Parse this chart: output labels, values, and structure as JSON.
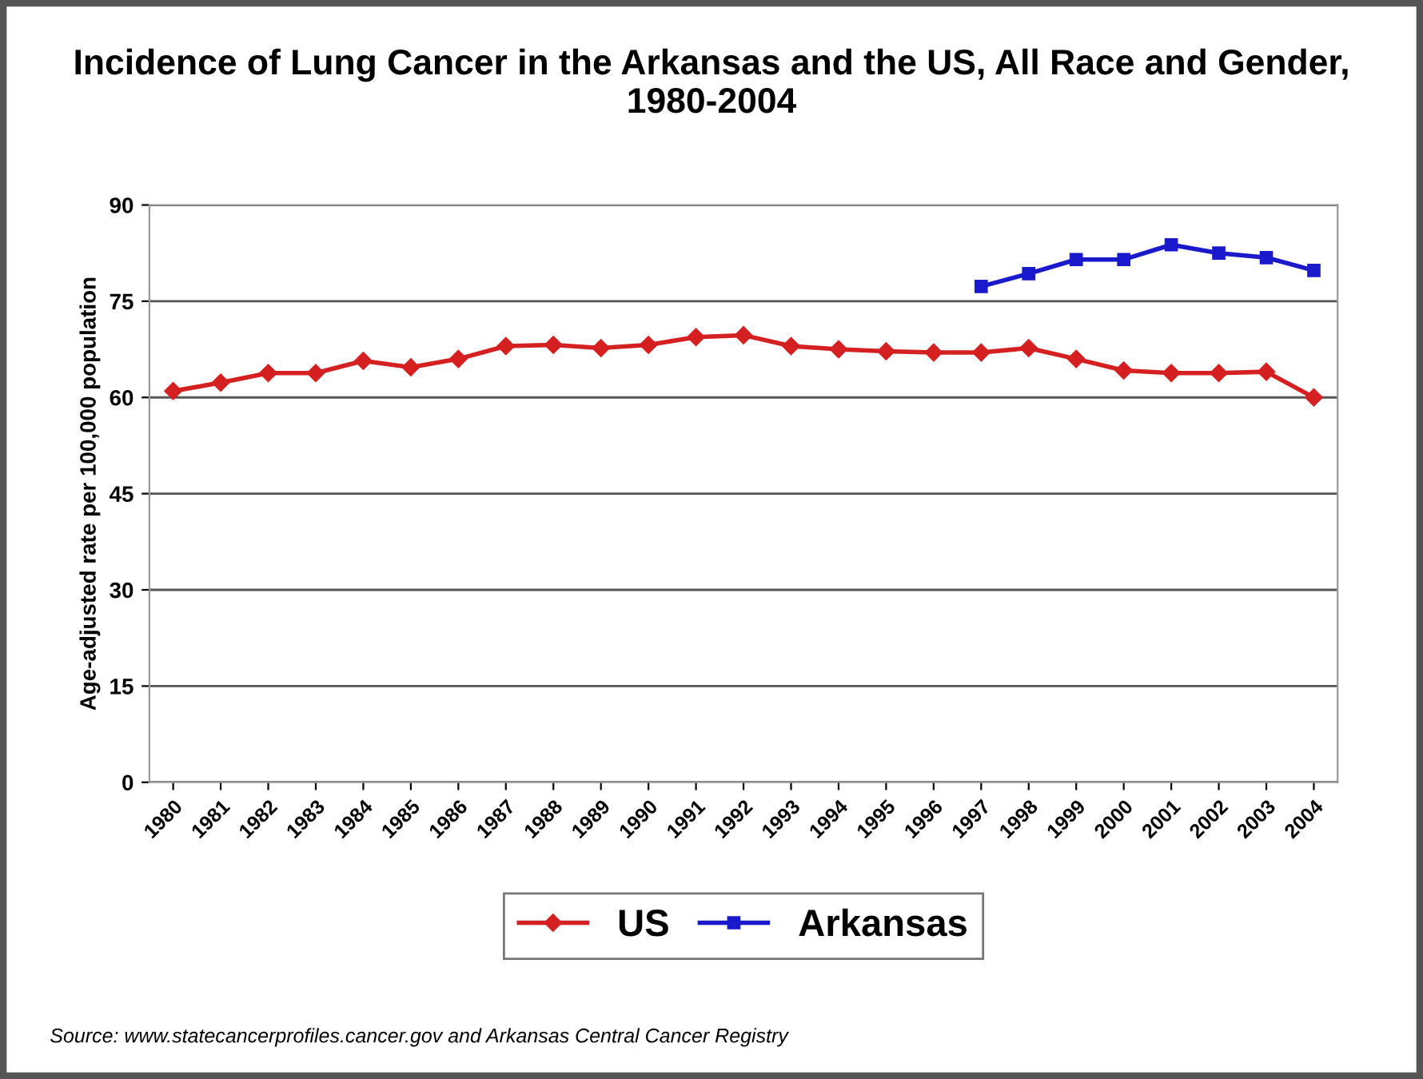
{
  "chart_data": {
    "type": "line",
    "title": "Incidence of Lung Cancer in the Arkansas and the US, All Race and Gender, 1980-2004",
    "ylabel": "Age-adjusted rate per 100,000 population",
    "categories": [
      "1980",
      "1981",
      "1982",
      "1983",
      "1984",
      "1985",
      "1986",
      "1987",
      "1988",
      "1989",
      "1990",
      "1991",
      "1992",
      "1993",
      "1994",
      "1995",
      "1996",
      "1997",
      "1998",
      "1999",
      "2000",
      "2001",
      "2002",
      "2003",
      "2004"
    ],
    "series": [
      {
        "name": "US",
        "color": "#d42020",
        "marker": "diamond",
        "values": [
          61.0,
          62.3,
          63.8,
          63.8,
          65.7,
          64.7,
          66.0,
          68.0,
          68.2,
          67.7,
          68.2,
          69.4,
          69.7,
          68.0,
          67.5,
          67.2,
          67.0,
          67.0,
          67.7,
          66.0,
          64.2,
          63.8,
          63.8,
          64.0,
          60.0
        ]
      },
      {
        "name": "Arkansas",
        "color": "#1a1acc",
        "marker": "square",
        "values": [
          null,
          null,
          null,
          null,
          null,
          null,
          null,
          null,
          null,
          null,
          null,
          null,
          null,
          null,
          null,
          null,
          null,
          77.3,
          79.3,
          81.5,
          81.5,
          83.8,
          82.5,
          81.8,
          79.8
        ]
      }
    ],
    "ylim": [
      0,
      90
    ],
    "yticks": [
      0,
      15,
      30,
      45,
      60,
      75,
      90
    ],
    "grid": "y",
    "legend": "bottom",
    "annotations": [
      "Source: www.statecancerprofiles.cancer.gov and Arkansas Central Cancer Registry"
    ]
  }
}
